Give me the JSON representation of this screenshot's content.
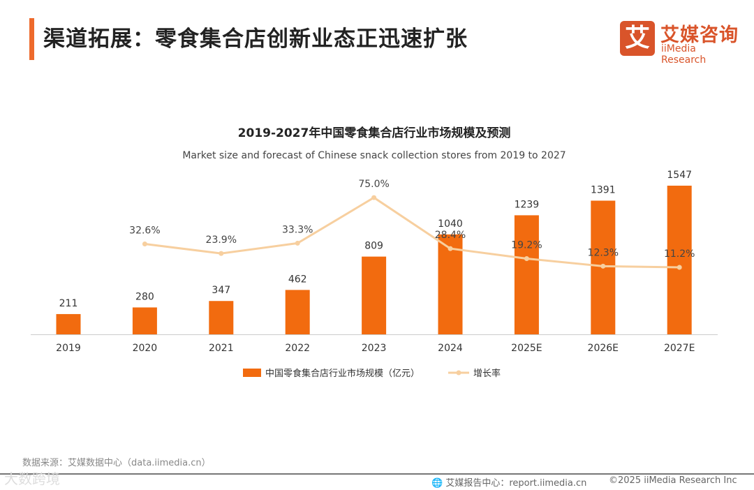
{
  "header": {
    "title": "渠道拓展：零食集合店创新业态正迅速扩张"
  },
  "logo": {
    "mark": "艾",
    "cn": "艾媒咨询",
    "en": "iiMedia Research"
  },
  "chart_data": {
    "type": "bar",
    "title": "2019-2027年中国零食集合店行业市场规模及预测",
    "subtitle": "Market size and forecast of Chinese snack collection stores from 2019 to 2027",
    "categories": [
      "2019",
      "2020",
      "2021",
      "2022",
      "2023",
      "2024",
      "2025E",
      "2026E",
      "2027E"
    ],
    "series": [
      {
        "name": "中国零食集合店行业市场规模（亿元）",
        "type": "bar",
        "color": "#f26b0f",
        "values": [
          211,
          280,
          347,
          462,
          809,
          1040,
          1239,
          1391,
          1547
        ]
      },
      {
        "name": "增长率",
        "type": "line",
        "color": "#f7cf9f",
        "values": [
          null,
          32.6,
          23.9,
          33.3,
          75.0,
          28.4,
          19.2,
          12.3,
          11.2
        ],
        "labels": [
          "",
          "32.6%",
          "23.9%",
          "33.3%",
          "75.0%",
          "28.4%",
          "19.2%",
          "12.3%",
          "11.2%"
        ]
      }
    ],
    "legend": "bottom",
    "grid": false
  },
  "footer": {
    "source": "数据来源：艾媒数据中心（data.iimedia.cn）",
    "report": "艾媒报告中心：report.iimedia.cn",
    "copyright": "©2025  iiMedia Research Inc",
    "watermark": "大数跨境"
  }
}
